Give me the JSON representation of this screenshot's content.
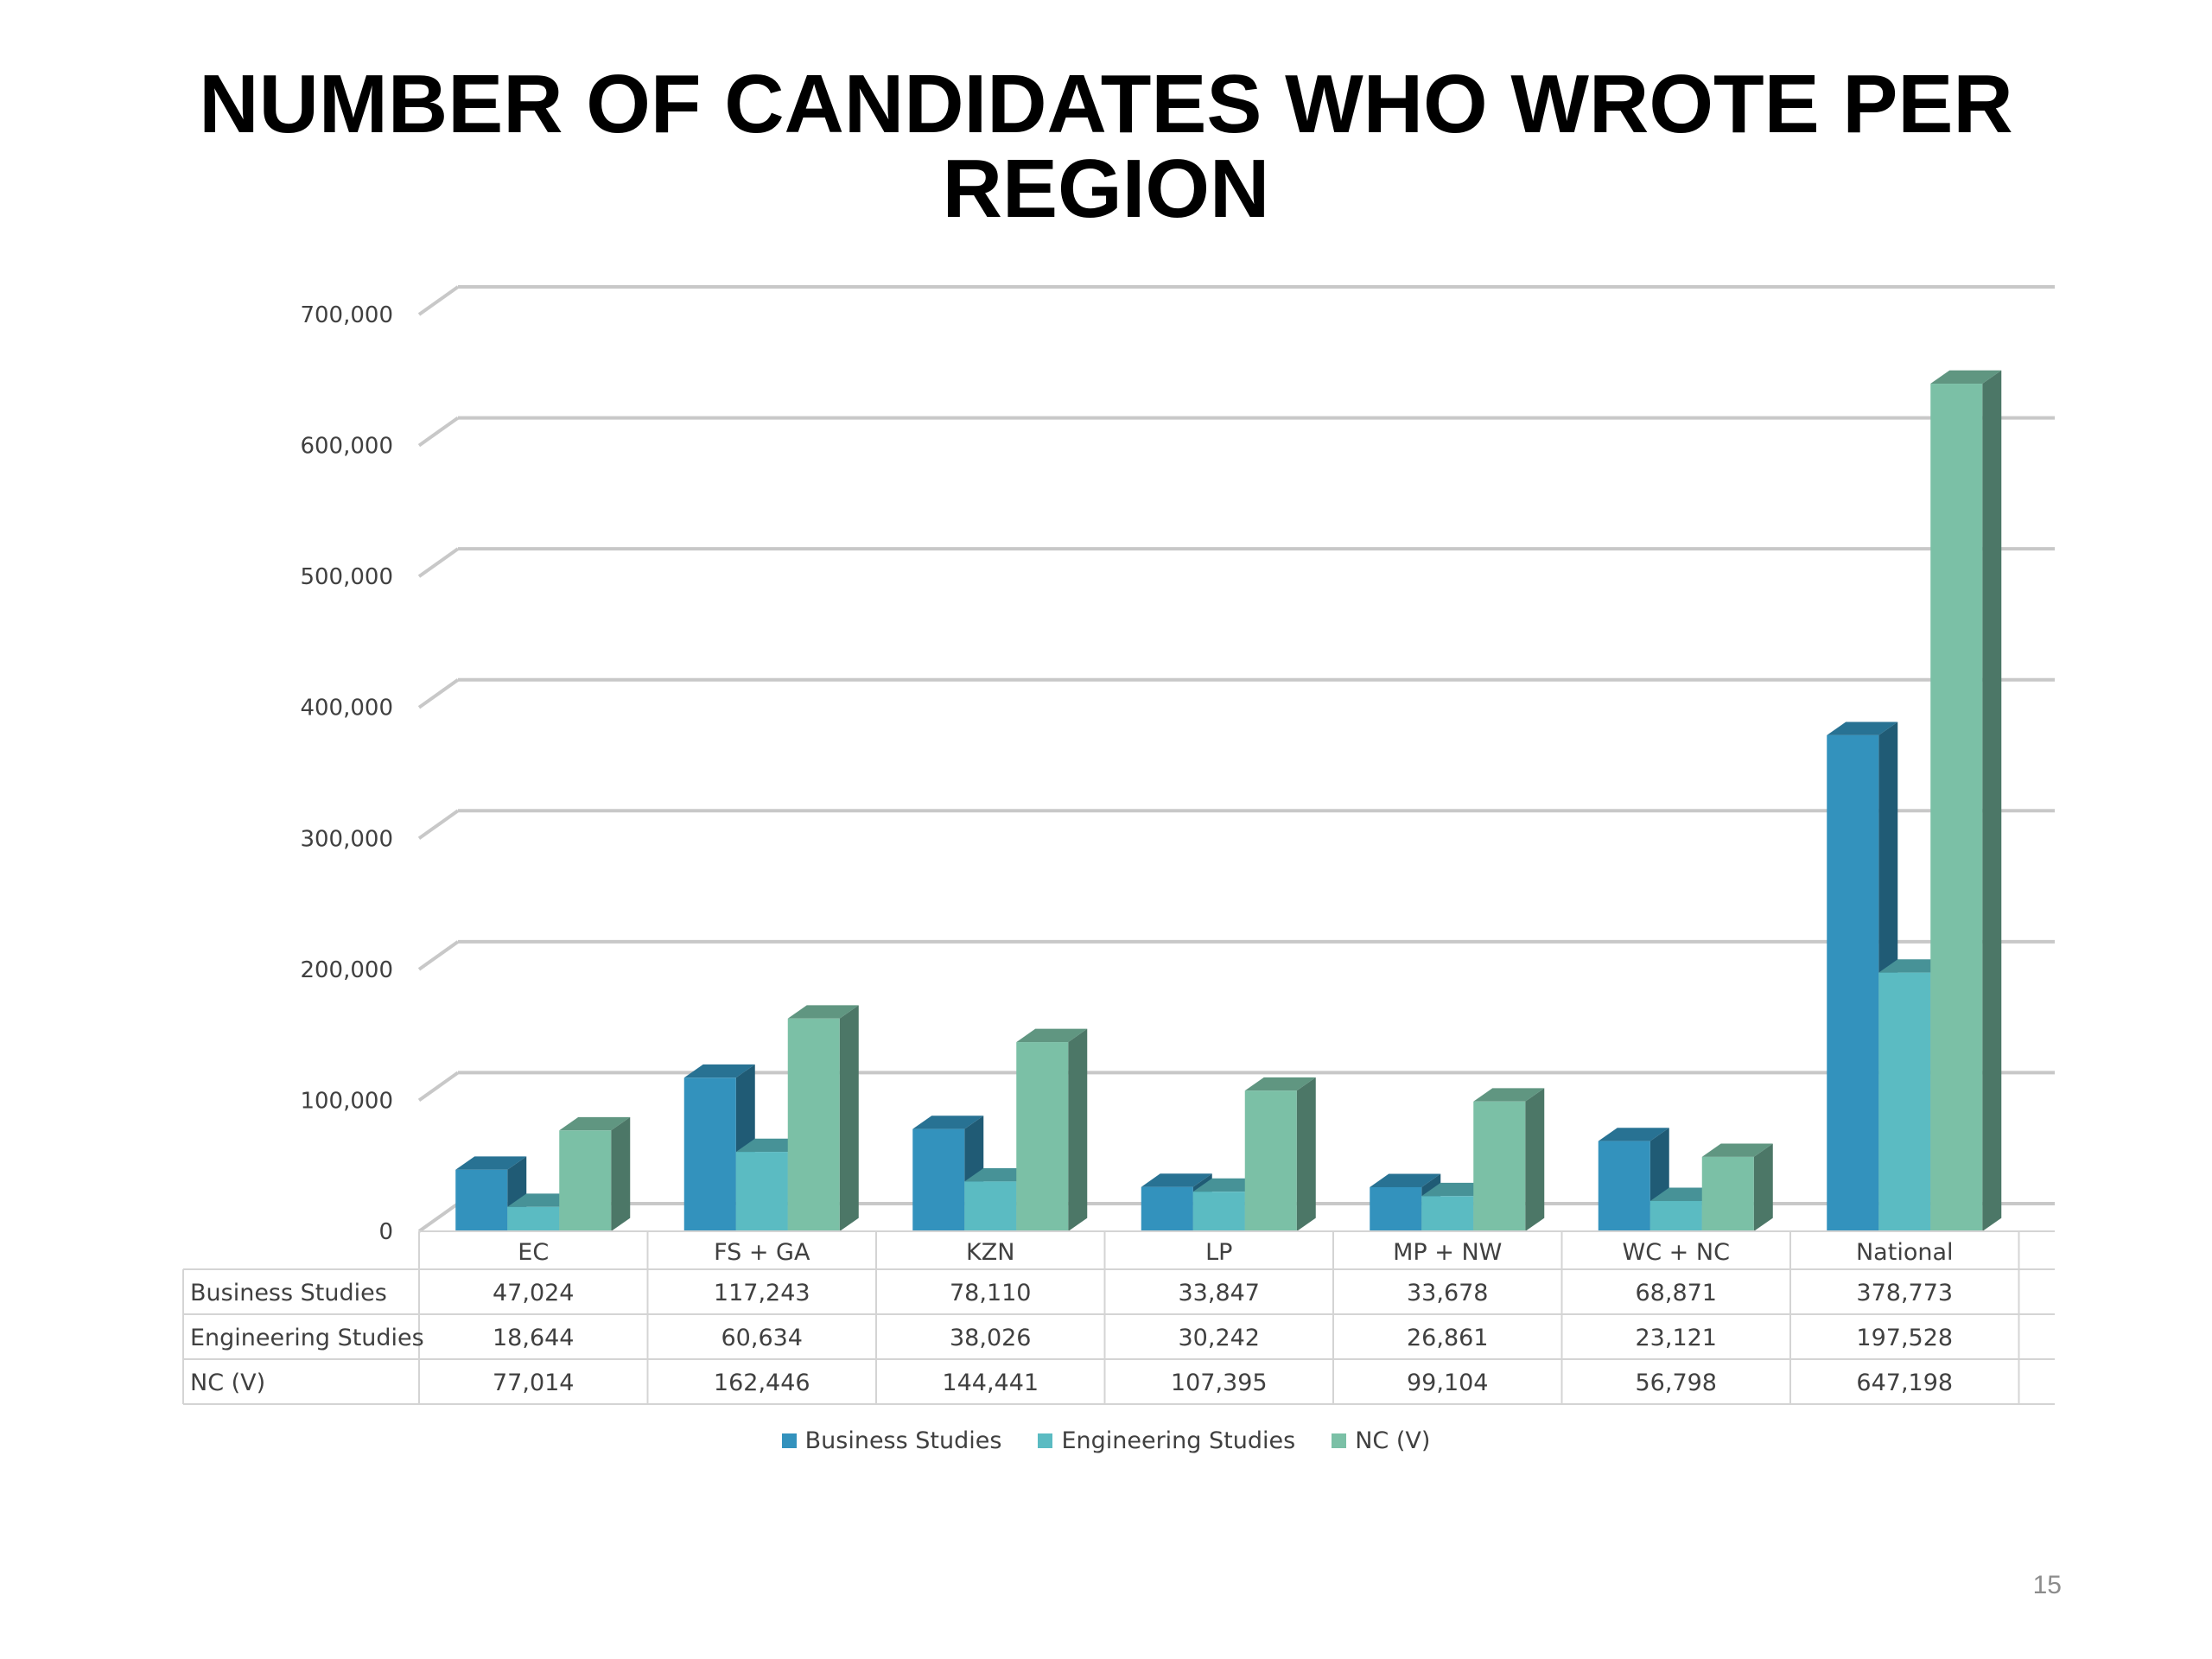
{
  "title": {
    "line1": "NUMBER OF CANDIDATES WHO WROTE PER",
    "line2": "REGION"
  },
  "page_number": "15",
  "colors": {
    "business": "#3392bd",
    "engineering": "#5bbbc2",
    "ncv": "#7bc0a6",
    "grid": "#c8c8c8",
    "table_border": "#d4d4d4"
  },
  "chart_data": {
    "type": "bar",
    "title": "",
    "xlabel": "",
    "ylabel": "",
    "categories": [
      "EC",
      "FS + GA",
      "KZN",
      "LP",
      "MP + NW",
      "WC + NC",
      "National"
    ],
    "ylim": [
      0,
      700000
    ],
    "yticks": [
      0,
      100000,
      200000,
      300000,
      400000,
      500000,
      600000,
      700000
    ],
    "ytick_labels": [
      "0",
      "100,000",
      "200,000",
      "300,000",
      "400,000",
      "500,000",
      "600,000",
      "700,000"
    ],
    "grid": true,
    "style": "3d-clustered-column-with-data-table",
    "legend_position": "bottom",
    "series": [
      {
        "name": "Business Studies",
        "values": [
          47024,
          117243,
          78110,
          33847,
          33678,
          68871,
          378773
        ],
        "labels": [
          "47,024",
          "117,243",
          "78,110",
          "33,847",
          "33,678",
          "68,871",
          "378,773"
        ]
      },
      {
        "name": "Engineering Studies",
        "values": [
          18644,
          60634,
          38026,
          30242,
          26861,
          23121,
          197528
        ],
        "labels": [
          "18,644",
          "60,634",
          "38,026",
          "30,242",
          "26,861",
          "23,121",
          "197,528"
        ]
      },
      {
        "name": "NC (V)",
        "values": [
          77014,
          162446,
          144441,
          107395,
          99104,
          56798,
          647198
        ],
        "labels": [
          "77,014",
          "162,446",
          "144,441",
          "107,395",
          "99,104",
          "56,798",
          "647,198"
        ]
      }
    ]
  }
}
